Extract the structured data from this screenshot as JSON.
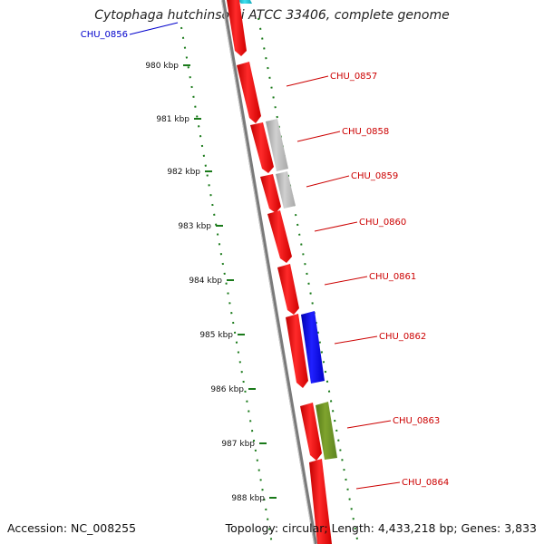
{
  "title": "Cytophaga hutchinsonii ATCC 33406, complete genome",
  "footer": {
    "accession": "Accession: NC_008255",
    "topology": "Topology: circular; Length: 4,433,218 bp; Genes: 3,833"
  },
  "colors": {
    "backbone": "#888888",
    "tick": "#1a7a1a",
    "label_red": "#cc0000",
    "label_blue": "#0000cc",
    "cds_red": "#ff1010",
    "cds_grey": "#b8b8b8",
    "cds_blue": "#0a0aff",
    "cds_olive": "#6b8e23",
    "cds_cyan": "#20c0d0"
  },
  "ticks": [
    {
      "label": "980 kbp",
      "kbp": 980
    },
    {
      "label": "981 kbp",
      "kbp": 981
    },
    {
      "label": "982 kbp",
      "kbp": 982
    },
    {
      "label": "983 kbp",
      "kbp": 983
    },
    {
      "label": "984 kbp",
      "kbp": 984
    },
    {
      "label": "985 kbp",
      "kbp": 985
    },
    {
      "label": "986 kbp",
      "kbp": 986
    },
    {
      "label": "987 kbp",
      "kbp": 987
    },
    {
      "label": "988 kbp",
      "kbp": 988
    }
  ],
  "genes": [
    {
      "label": "CHU_0856",
      "color_key": "label_blue"
    },
    {
      "label": "CHU_0857",
      "color_key": "label_red"
    },
    {
      "label": "CHU_0858",
      "color_key": "label_red"
    },
    {
      "label": "CHU_0859",
      "color_key": "label_red"
    },
    {
      "label": "CHU_0860",
      "color_key": "label_red"
    },
    {
      "label": "CHU_0861",
      "color_key": "label_red"
    },
    {
      "label": "CHU_0862",
      "color_key": "label_red"
    },
    {
      "label": "CHU_0863",
      "color_key": "label_red"
    },
    {
      "label": "CHU_0864",
      "color_key": "label_red"
    }
  ]
}
